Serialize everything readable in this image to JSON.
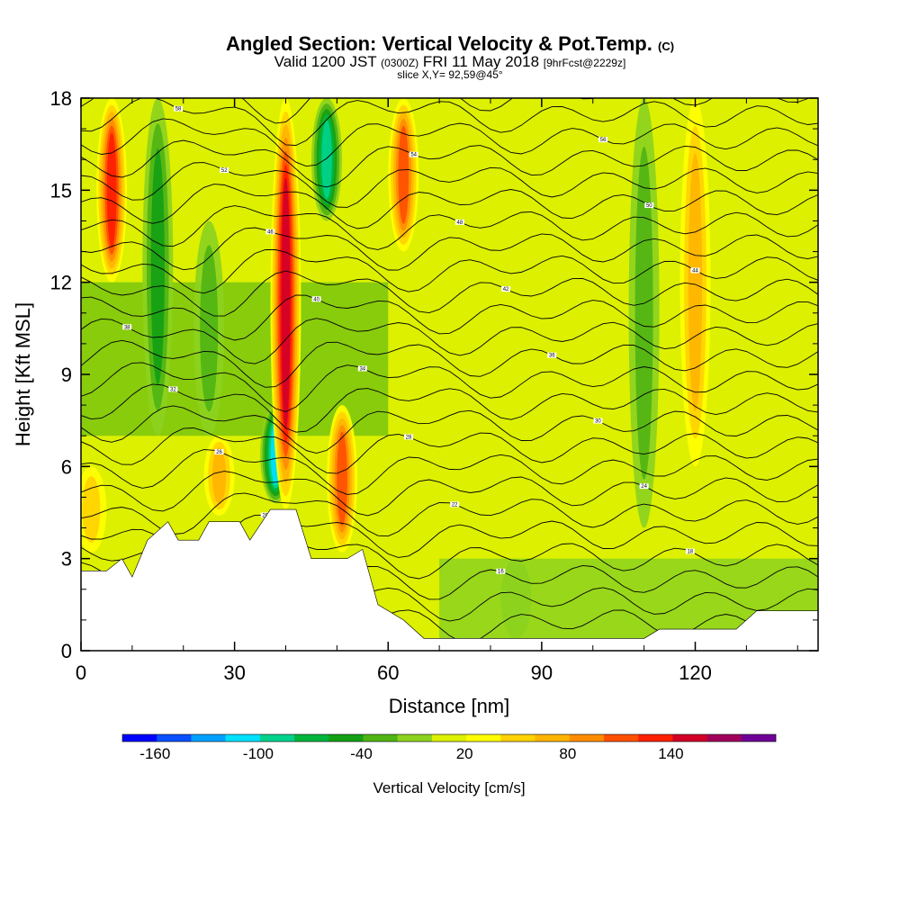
{
  "title": {
    "main": "Angled Section: Vertical Velocity & Pot.Temp.",
    "main_unit": "(C)",
    "valid_prefix": "Valid 1200 JST",
    "valid_utc": "(0300Z)",
    "valid_date": "FRI 11 May 2018",
    "forecast": "[9hrFcst@2229z]",
    "slice": "slice X,Y= 92,59@45°"
  },
  "chart_data": {
    "type": "heatmap",
    "xlabel": "Distance [nm]",
    "ylabel": "Height [Kft MSL]",
    "xlim": [
      0,
      144
    ],
    "ylim": [
      0,
      18
    ],
    "x_ticks": [
      "0",
      "30",
      "60",
      "90",
      "120"
    ],
    "x_tick_values": [
      0,
      30,
      60,
      90,
      120
    ],
    "y_ticks": [
      "0",
      "3",
      "6",
      "9",
      "12",
      "15",
      "18"
    ],
    "y_tick_values": [
      0,
      3,
      6,
      9,
      12,
      15,
      18
    ],
    "colorbar": {
      "label": "Vertical Velocity [cm/s]",
      "tick_labels": [
        "-160",
        "-100",
        "-40",
        "20",
        "80",
        "140"
      ],
      "colors": [
        "#0000ff",
        "#0a50ff",
        "#00a0ff",
        "#00e0ff",
        "#00d28c",
        "#00b43c",
        "#14a014",
        "#50b414",
        "#8cd21e",
        "#dcf000",
        "#ffff00",
        "#ffd200",
        "#ffb400",
        "#ff8c00",
        "#ff5000",
        "#ff1e00",
        "#d20028",
        "#a0005a",
        "#6e0096"
      ]
    },
    "terrain_kft": [
      [
        0,
        2.6
      ],
      [
        5,
        2.6
      ],
      [
        8,
        3.0
      ],
      [
        10,
        2.4
      ],
      [
        13,
        3.6
      ],
      [
        17,
        4.2
      ],
      [
        19,
        3.6
      ],
      [
        23,
        3.6
      ],
      [
        25,
        4.2
      ],
      [
        31,
        4.2
      ],
      [
        33,
        3.6
      ],
      [
        37,
        4.6
      ],
      [
        42,
        4.6
      ],
      [
        45,
        3.0
      ],
      [
        52,
        3.0
      ],
      [
        55,
        3.3
      ],
      [
        58,
        1.5
      ],
      [
        63,
        1.0
      ],
      [
        67,
        0.4
      ],
      [
        110,
        0.4
      ],
      [
        113,
        0.7
      ],
      [
        128,
        0.7
      ],
      [
        132,
        1.3
      ],
      [
        144,
        1.3
      ]
    ],
    "updraft_columns": [
      {
        "x": 6,
        "ytop": 18,
        "ybottom": 12,
        "w_max": 110
      },
      {
        "x": 40,
        "ytop": 18,
        "ybottom": 4.6,
        "w_max": 130
      },
      {
        "x": 51,
        "ytop": 8,
        "ybottom": 3.2,
        "w_max": 90
      },
      {
        "x": 63,
        "ytop": 18,
        "ybottom": 13,
        "w_max": 100
      },
      {
        "x": 27,
        "ytop": 7,
        "ybottom": 4.4,
        "w_max": 50
      },
      {
        "x": 120,
        "ytop": 18,
        "ybottom": 6,
        "w_max": 60
      },
      {
        "x": 2,
        "ytop": 6,
        "ybottom": 3.2,
        "w_max": 40
      }
    ],
    "downdraft_columns": [
      {
        "x": 15,
        "ytop": 18,
        "ybottom": 7,
        "w_max": -60
      },
      {
        "x": 38,
        "ytop": 8,
        "ybottom": 4.8,
        "w_max": -110
      },
      {
        "x": 48,
        "ytop": 18,
        "ybottom": 14,
        "w_max": -90
      },
      {
        "x": 110,
        "ytop": 18,
        "ybottom": 4,
        "w_max": -40
      },
      {
        "x": 25,
        "ytop": 14,
        "ybottom": 7,
        "w_max": -30
      },
      {
        "x": 85,
        "ytop": 3,
        "ybottom": 0.4,
        "w_max": -20
      }
    ],
    "isentrope_labels": [
      "12",
      "14",
      "16",
      "18",
      "20",
      "22",
      "24",
      "26",
      "28",
      "30",
      "32",
      "34",
      "36",
      "38",
      "40",
      "42",
      "44",
      "46",
      "48",
      "50",
      "52",
      "54",
      "56",
      "58",
      "60"
    ]
  }
}
